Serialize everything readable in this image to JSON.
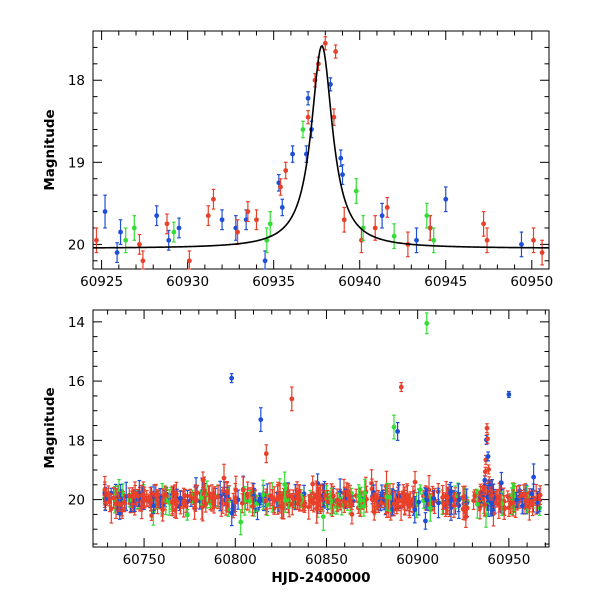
{
  "colors": {
    "blue": "#1f4fd6",
    "red": "#e8402a",
    "green": "#33dd33",
    "fit": "#000000"
  },
  "chart_data": [
    {
      "type": "scatter",
      "title": "",
      "xlabel": "",
      "ylabel": "Magnitude",
      "xlim": [
        60924.5,
        60951
      ],
      "ylim": [
        20.3,
        17.4
      ],
      "y_inverted": true,
      "xticks": [
        60925,
        60930,
        60935,
        60940,
        60945,
        60950
      ],
      "xtick_labels": [
        "60925",
        "60930",
        "60935",
        "60940",
        "60945",
        "60950"
      ],
      "yticks": [
        18,
        19,
        20
      ],
      "ytick_labels": [
        "18",
        "19",
        "20"
      ],
      "model_curve": {
        "baseline": 20.05,
        "peak_mag": 17.58,
        "t0": 60937.8,
        "width": 0.75
      },
      "series": [
        {
          "name": "blue",
          "color_key": "blue",
          "points": [
            [
              60925.2,
              19.6,
              0.2
            ],
            [
              60925.9,
              20.1,
              0.12
            ],
            [
              60926.1,
              19.85,
              0.15
            ],
            [
              60928.2,
              19.65,
              0.12
            ],
            [
              60928.9,
              19.95,
              0.12
            ],
            [
              60929.5,
              19.8,
              0.12
            ],
            [
              60932.0,
              19.7,
              0.12
            ],
            [
              60932.8,
              19.8,
              0.15
            ],
            [
              60933.4,
              19.7,
              0.12
            ],
            [
              60934.5,
              20.2,
              0.12
            ],
            [
              60935.3,
              19.25,
              0.1
            ],
            [
              60935.5,
              19.55,
              0.1
            ],
            [
              60936.1,
              18.9,
              0.1
            ],
            [
              60936.9,
              18.9,
              0.1
            ],
            [
              60937.0,
              18.22,
              0.08
            ],
            [
              60937.2,
              18.6,
              0.1
            ],
            [
              60938.3,
              18.05,
              0.08
            ],
            [
              60938.9,
              18.95,
              0.1
            ],
            [
              60939.0,
              19.15,
              0.12
            ],
            [
              60941.3,
              19.65,
              0.15
            ],
            [
              60943.3,
              19.95,
              0.15
            ],
            [
              60944.1,
              19.8,
              0.15
            ],
            [
              60945.0,
              19.45,
              0.15
            ],
            [
              60949.4,
              20.0,
              0.15
            ]
          ]
        },
        {
          "name": "red",
          "color_key": "red",
          "points": [
            [
              60924.7,
              19.95,
              0.15
            ],
            [
              60927.2,
              20.0,
              0.12
            ],
            [
              60927.4,
              20.2,
              0.12
            ],
            [
              60928.8,
              19.75,
              0.12
            ],
            [
              60930.1,
              20.2,
              0.12
            ],
            [
              60931.2,
              19.65,
              0.12
            ],
            [
              60931.5,
              19.45,
              0.12
            ],
            [
              60932.9,
              19.85,
              0.15
            ],
            [
              60933.5,
              19.6,
              0.12
            ],
            [
              60934.0,
              19.7,
              0.12
            ],
            [
              60935.4,
              19.3,
              0.1
            ],
            [
              60935.7,
              19.1,
              0.1
            ],
            [
              60937.0,
              18.45,
              0.08
            ],
            [
              60937.4,
              18.0,
              0.08
            ],
            [
              60937.6,
              17.8,
              0.08
            ],
            [
              60938.0,
              17.55,
              0.08
            ],
            [
              60938.6,
              17.65,
              0.08
            ],
            [
              60938.5,
              18.45,
              0.1
            ],
            [
              60939.1,
              19.7,
              0.15
            ],
            [
              60940.1,
              19.95,
              0.15
            ],
            [
              60940.9,
              19.8,
              0.15
            ],
            [
              60941.6,
              19.55,
              0.12
            ],
            [
              60942.8,
              20.0,
              0.15
            ],
            [
              60944.1,
              19.8,
              0.15
            ],
            [
              60947.2,
              19.75,
              0.15
            ],
            [
              60947.4,
              19.95,
              0.15
            ],
            [
              60950.1,
              19.95,
              0.15
            ],
            [
              60950.6,
              20.1,
              0.15
            ]
          ]
        },
        {
          "name": "green",
          "color_key": "green",
          "points": [
            [
              60926.4,
              19.95,
              0.15
            ],
            [
              60926.9,
              19.8,
              0.15
            ],
            [
              60929.2,
              19.85,
              0.12
            ],
            [
              60934.6,
              19.95,
              0.15
            ],
            [
              60934.8,
              19.75,
              0.15
            ],
            [
              60936.7,
              18.6,
              0.1
            ],
            [
              60939.8,
              19.35,
              0.15
            ],
            [
              60940.2,
              19.8,
              0.15
            ],
            [
              60942.0,
              19.9,
              0.15
            ],
            [
              60943.9,
              19.65,
              0.15
            ],
            [
              60944.3,
              19.95,
              0.15
            ]
          ]
        }
      ]
    },
    {
      "type": "scatter",
      "title": "",
      "xlabel": "HJD-2400000",
      "ylabel": "Magnitude",
      "xlim": [
        60722,
        60972
      ],
      "ylim": [
        21.6,
        13.6
      ],
      "y_inverted": true,
      "xticks": [
        60750,
        60800,
        60850,
        60900,
        60950
      ],
      "xtick_labels": [
        "60750",
        "60800",
        "60850",
        "60900",
        "60950"
      ],
      "yticks": [
        14,
        16,
        18,
        20
      ],
      "ytick_labels": [
        "14",
        "16",
        "18",
        "20"
      ],
      "outliers": [
        {
          "series": "blue",
          "x": 60798,
          "y": 15.9,
          "err": 0.15
        },
        {
          "series": "blue",
          "x": 60814,
          "y": 17.3,
          "err": 0.4
        },
        {
          "series": "blue",
          "x": 60889,
          "y": 17.7,
          "err": 0.3
        },
        {
          "series": "blue",
          "x": 60950,
          "y": 16.45,
          "err": 0.1
        },
        {
          "series": "red",
          "x": 60831,
          "y": 16.6,
          "err": 0.4
        },
        {
          "series": "red",
          "x": 60891,
          "y": 16.2,
          "err": 0.15
        },
        {
          "series": "red",
          "x": 60817,
          "y": 18.45,
          "err": 0.3
        },
        {
          "series": "green",
          "x": 60905,
          "y": 14.05,
          "err": 0.35
        },
        {
          "series": "green",
          "x": 60887,
          "y": 17.55,
          "err": 0.4
        }
      ],
      "event_peak": {
        "x": 60938,
        "y": 17.6
      }
    }
  ]
}
